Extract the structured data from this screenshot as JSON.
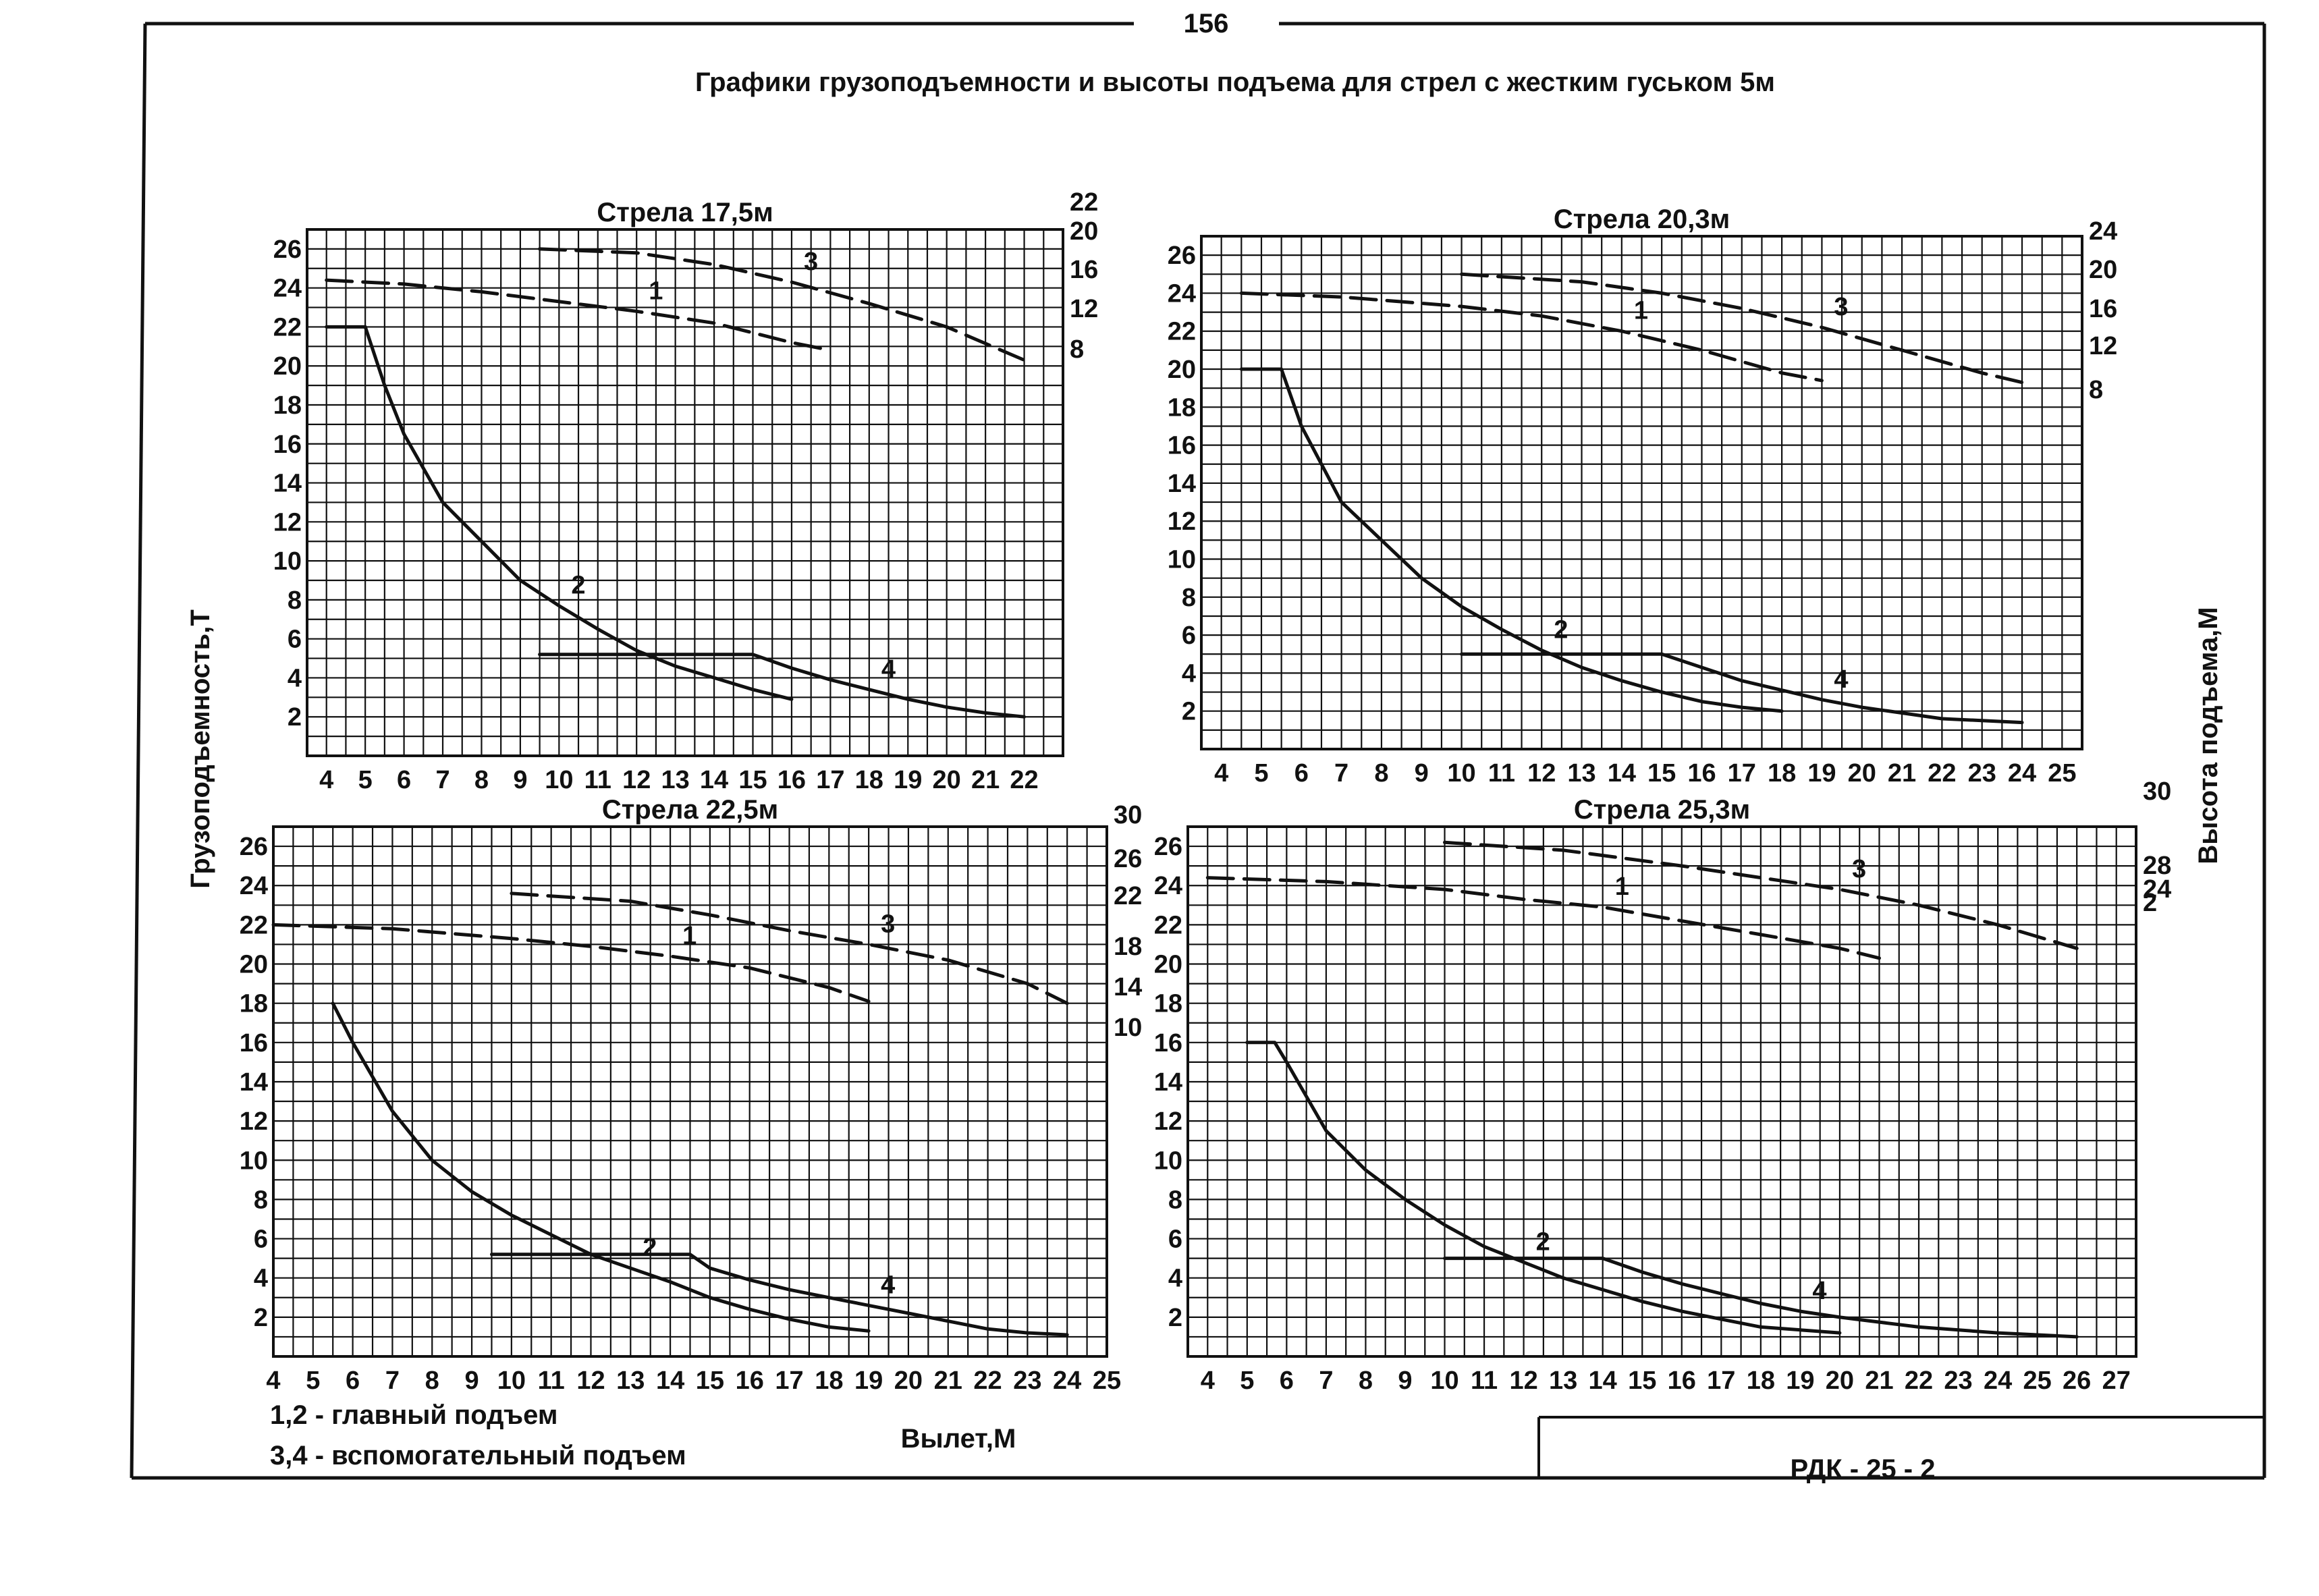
{
  "page_number": "156",
  "title": "Графики грузоподъемности и высоты подъема для стрел с жестким гуськом 5м",
  "y_axis_left_label": "Грузоподъемность,Т",
  "y_axis_right_label": "Высота подъема,М",
  "x_axis_label": "Вылет,М",
  "legend": {
    "main": "1,2 - главный подъем",
    "aux": "3,4 - вспомогательный подъем"
  },
  "doc_code": "РДК - 25 - 2",
  "colors": {
    "ink": "#111111",
    "paper": "#ffffff"
  },
  "chart_data": [
    {
      "type": "line",
      "title": "Стрела 17,5м",
      "xlabel": "Вылет,М",
      "ylabel": "Грузоподъемность,Т",
      "y2label": "Высота подъема,М",
      "x_ticks": [
        "4",
        "5",
        "6",
        "7",
        "8",
        "9",
        "10",
        "11",
        "12",
        "13",
        "14",
        "15",
        "16",
        "17",
        "18",
        "19",
        "20",
        "21",
        "22"
      ],
      "y_ticks": [
        "2",
        "4",
        "6",
        "8",
        "10",
        "12",
        "14",
        "16",
        "18",
        "20",
        "22",
        "24",
        "26"
      ],
      "y2_ticks": [
        "22",
        "20",
        "16",
        "12",
        "8"
      ],
      "xlim": [
        3.5,
        23
      ],
      "ylim": [
        0,
        27
      ],
      "series": [
        {
          "name": "1",
          "label": "1",
          "axis": "height",
          "dash": true,
          "points": [
            [
              4,
              24.4
            ],
            [
              6,
              24.2
            ],
            [
              8,
              23.8
            ],
            [
              10,
              23.3
            ],
            [
              12,
              22.8
            ],
            [
              14,
              22.2
            ],
            [
              16,
              21.2
            ],
            [
              17,
              20.8
            ]
          ]
        },
        {
          "name": "2",
          "label": "2",
          "axis": "load",
          "dash": false,
          "points": [
            [
              4,
              22
            ],
            [
              5,
              22
            ],
            [
              5.5,
              19
            ],
            [
              6,
              16.5
            ],
            [
              7,
              13
            ],
            [
              8,
              11
            ],
            [
              9,
              9
            ],
            [
              10,
              7.7
            ],
            [
              11,
              6.5
            ],
            [
              12,
              5.4
            ],
            [
              13,
              4.6
            ],
            [
              14,
              4
            ],
            [
              15,
              3.4
            ],
            [
              16,
              2.9
            ]
          ]
        },
        {
          "name": "3",
          "label": "3",
          "axis": "height",
          "dash": true,
          "points": [
            [
              9.5,
              26
            ],
            [
              12,
              25.8
            ],
            [
              14,
              25.2
            ],
            [
              16,
              24.3
            ],
            [
              18,
              23.2
            ],
            [
              20,
              22
            ],
            [
              22,
              20.3
            ]
          ]
        },
        {
          "name": "4",
          "label": "4",
          "axis": "load",
          "dash": false,
          "points": [
            [
              9.5,
              5.2
            ],
            [
              15,
              5.2
            ],
            [
              16,
              4.5
            ],
            [
              17,
              3.9
            ],
            [
              18,
              3.4
            ],
            [
              19,
              2.9
            ],
            [
              20,
              2.5
            ],
            [
              21,
              2.2
            ],
            [
              22,
              2
            ]
          ]
        }
      ],
      "series_labels": {
        "1": "1",
        "2": "2",
        "3": "3",
        "4": "4"
      }
    },
    {
      "type": "line",
      "title": "Стрела 20,3м",
      "xlabel": "Вылет,М",
      "ylabel": "Грузоподъемность,Т",
      "y2label": "Высота подъема,М",
      "x_ticks": [
        "4",
        "5",
        "6",
        "7",
        "8",
        "9",
        "10",
        "11",
        "12",
        "13",
        "14",
        "15",
        "16",
        "17",
        "18",
        "19",
        "20",
        "21",
        "22",
        "23",
        "24",
        "25"
      ],
      "y_ticks": [
        "2",
        "4",
        "6",
        "8",
        "10",
        "12",
        "14",
        "16",
        "18",
        "20",
        "22",
        "24",
        "26"
      ],
      "y2_ticks": [
        "24",
        "20",
        "16",
        "12",
        "8"
      ],
      "xlim": [
        3.5,
        25.5
      ],
      "ylim": [
        0,
        27
      ],
      "series": [
        {
          "name": "1",
          "label": "1",
          "axis": "height",
          "dash": true,
          "points": [
            [
              4.5,
              24
            ],
            [
              7,
              23.8
            ],
            [
              10,
              23.3
            ],
            [
              12,
              22.8
            ],
            [
              14,
              22
            ],
            [
              16,
              21
            ],
            [
              18,
              19.8
            ],
            [
              19,
              19.4
            ]
          ]
        },
        {
          "name": "2",
          "label": "2",
          "axis": "load",
          "dash": false,
          "points": [
            [
              4.5,
              20
            ],
            [
              5.5,
              20
            ],
            [
              6,
              17
            ],
            [
              7,
              13
            ],
            [
              8,
              11
            ],
            [
              9,
              9
            ],
            [
              10,
              7.5
            ],
            [
              11,
              6.3
            ],
            [
              12,
              5.2
            ],
            [
              13,
              4.3
            ],
            [
              14,
              3.6
            ],
            [
              15,
              3
            ],
            [
              16,
              2.5
            ],
            [
              17,
              2.2
            ],
            [
              18,
              2
            ]
          ]
        },
        {
          "name": "3",
          "label": "3",
          "axis": "height",
          "dash": true,
          "points": [
            [
              10,
              25
            ],
            [
              13,
              24.6
            ],
            [
              15,
              24
            ],
            [
              17,
              23.2
            ],
            [
              19,
              22.2
            ],
            [
              21,
              21
            ],
            [
              23,
              19.8
            ],
            [
              24,
              19.3
            ]
          ]
        },
        {
          "name": "4",
          "label": "4",
          "axis": "load",
          "dash": false,
          "points": [
            [
              10,
              5
            ],
            [
              15,
              5
            ],
            [
              16,
              4.3
            ],
            [
              17,
              3.6
            ],
            [
              18,
              3.1
            ],
            [
              19,
              2.6
            ],
            [
              20,
              2.2
            ],
            [
              21,
              1.9
            ],
            [
              22,
              1.6
            ],
            [
              24,
              1.4
            ]
          ]
        }
      ],
      "series_labels": {
        "1": "1",
        "2": "2",
        "3": "3",
        "4": "4"
      }
    },
    {
      "type": "line",
      "title": "Стрела 22,5м",
      "xlabel": "Вылет,М",
      "ylabel": "Грузоподъемность,Т",
      "y2label": "Высота подъема,М",
      "x_ticks": [
        "4",
        "5",
        "6",
        "7",
        "8",
        "9",
        "10",
        "11",
        "12",
        "13",
        "14",
        "15",
        "16",
        "17",
        "18",
        "19",
        "20",
        "21",
        "22",
        "23",
        "24",
        "25"
      ],
      "y_ticks": [
        "2",
        "4",
        "6",
        "8",
        "10",
        "12",
        "14",
        "16",
        "18",
        "20",
        "22",
        "24",
        "26"
      ],
      "y2_ticks": [
        "30",
        "26",
        "22",
        "18",
        "14",
        "10"
      ],
      "xlim": [
        4,
        25
      ],
      "ylim": [
        0,
        27
      ],
      "series": [
        {
          "name": "1",
          "label": "1",
          "axis": "height",
          "dash": true,
          "points": [
            [
              4,
              22
            ],
            [
              7,
              21.8
            ],
            [
              10,
              21.3
            ],
            [
              12,
              20.9
            ],
            [
              14,
              20.4
            ],
            [
              16,
              19.8
            ],
            [
              18,
              18.8
            ],
            [
              19,
              18.1
            ]
          ]
        },
        {
          "name": "2",
          "label": "2",
          "axis": "load",
          "dash": false,
          "points": [
            [
              5.5,
              18
            ],
            [
              6,
              16
            ],
            [
              7,
              12.5
            ],
            [
              8,
              10
            ],
            [
              9,
              8.4
            ],
            [
              10,
              7.2
            ],
            [
              11,
              6.2
            ],
            [
              12,
              5.2
            ],
            [
              13,
              4.5
            ],
            [
              14,
              3.8
            ],
            [
              15,
              3
            ],
            [
              16,
              2.4
            ],
            [
              17,
              1.9
            ],
            [
              18,
              1.5
            ],
            [
              19,
              1.3
            ]
          ]
        },
        {
          "name": "3",
          "label": "3",
          "axis": "height",
          "dash": true,
          "points": [
            [
              10,
              23.6
            ],
            [
              13,
              23.2
            ],
            [
              15,
              22.5
            ],
            [
              17,
              21.7
            ],
            [
              19,
              21
            ],
            [
              21,
              20.2
            ],
            [
              23,
              19
            ],
            [
              24,
              18
            ]
          ]
        },
        {
          "name": "4",
          "label": "4",
          "axis": "load",
          "dash": false,
          "points": [
            [
              9.5,
              5.2
            ],
            [
              14.5,
              5.2
            ],
            [
              15,
              4.5
            ],
            [
              16,
              3.9
            ],
            [
              17,
              3.4
            ],
            [
              18,
              3
            ],
            [
              19,
              2.6
            ],
            [
              20,
              2.2
            ],
            [
              21,
              1.8
            ],
            [
              22,
              1.4
            ],
            [
              23,
              1.2
            ],
            [
              24,
              1.1
            ]
          ]
        }
      ],
      "series_labels": {
        "1": "1",
        "2": "2",
        "3": "3",
        "4": "4"
      }
    },
    {
      "type": "line",
      "title": "Стрела 25,3м",
      "xlabel": "Вылет,М",
      "ylabel": "Грузоподъемность,Т",
      "y2label": "Высота подъема,М",
      "x_ticks": [
        "4",
        "5",
        "6",
        "7",
        "8",
        "9",
        "10",
        "11",
        "12",
        "13",
        "14",
        "15",
        "16",
        "17",
        "18",
        "19",
        "20",
        "21",
        "22",
        "23",
        "24",
        "25",
        "26",
        "27"
      ],
      "y_ticks": [
        "2",
        "4",
        "6",
        "8",
        "10",
        "12",
        "14",
        "16",
        "18",
        "20",
        "22",
        "24",
        "26"
      ],
      "y2_ticks": [
        "30",
        "28",
        "24",
        "2"
      ],
      "xlim": [
        3.5,
        27.5
      ],
      "ylim": [
        0,
        27
      ],
      "series": [
        {
          "name": "1",
          "label": "1",
          "axis": "height",
          "dash": true,
          "points": [
            [
              4,
              24.4
            ],
            [
              7,
              24.2
            ],
            [
              10,
              23.8
            ],
            [
              12,
              23.3
            ],
            [
              14,
              22.9
            ],
            [
              16,
              22.2
            ],
            [
              18,
              21.5
            ],
            [
              20,
              20.8
            ],
            [
              21,
              20.3
            ]
          ]
        },
        {
          "name": "2",
          "label": "2",
          "axis": "load",
          "dash": false,
          "points": [
            [
              5,
              16
            ],
            [
              5.7,
              16
            ],
            [
              6,
              15
            ],
            [
              7,
              11.5
            ],
            [
              8,
              9.5
            ],
            [
              9,
              8
            ],
            [
              10,
              6.7
            ],
            [
              11,
              5.6
            ],
            [
              12,
              4.8
            ],
            [
              13,
              4
            ],
            [
              14,
              3.4
            ],
            [
              15,
              2.8
            ],
            [
              16,
              2.3
            ],
            [
              17,
              1.9
            ],
            [
              18,
              1.5
            ],
            [
              20,
              1.2
            ]
          ]
        },
        {
          "name": "3",
          "label": "3",
          "axis": "height",
          "dash": true,
          "points": [
            [
              10,
              26.2
            ],
            [
              13,
              25.8
            ],
            [
              16,
              25
            ],
            [
              18,
              24.4
            ],
            [
              20,
              23.8
            ],
            [
              22,
              23
            ],
            [
              24,
              22
            ],
            [
              26,
              20.8
            ]
          ]
        },
        {
          "name": "4",
          "label": "4",
          "axis": "load",
          "dash": false,
          "points": [
            [
              10,
              5
            ],
            [
              14,
              5
            ],
            [
              15,
              4.3
            ],
            [
              16,
              3.7
            ],
            [
              17,
              3.2
            ],
            [
              18,
              2.7
            ],
            [
              19,
              2.3
            ],
            [
              20,
              2
            ],
            [
              22,
              1.5
            ],
            [
              24,
              1.2
            ],
            [
              26,
              1
            ]
          ]
        }
      ],
      "series_labels": {
        "1": "1",
        "2": "2",
        "3": "3",
        "4": "4"
      }
    }
  ]
}
